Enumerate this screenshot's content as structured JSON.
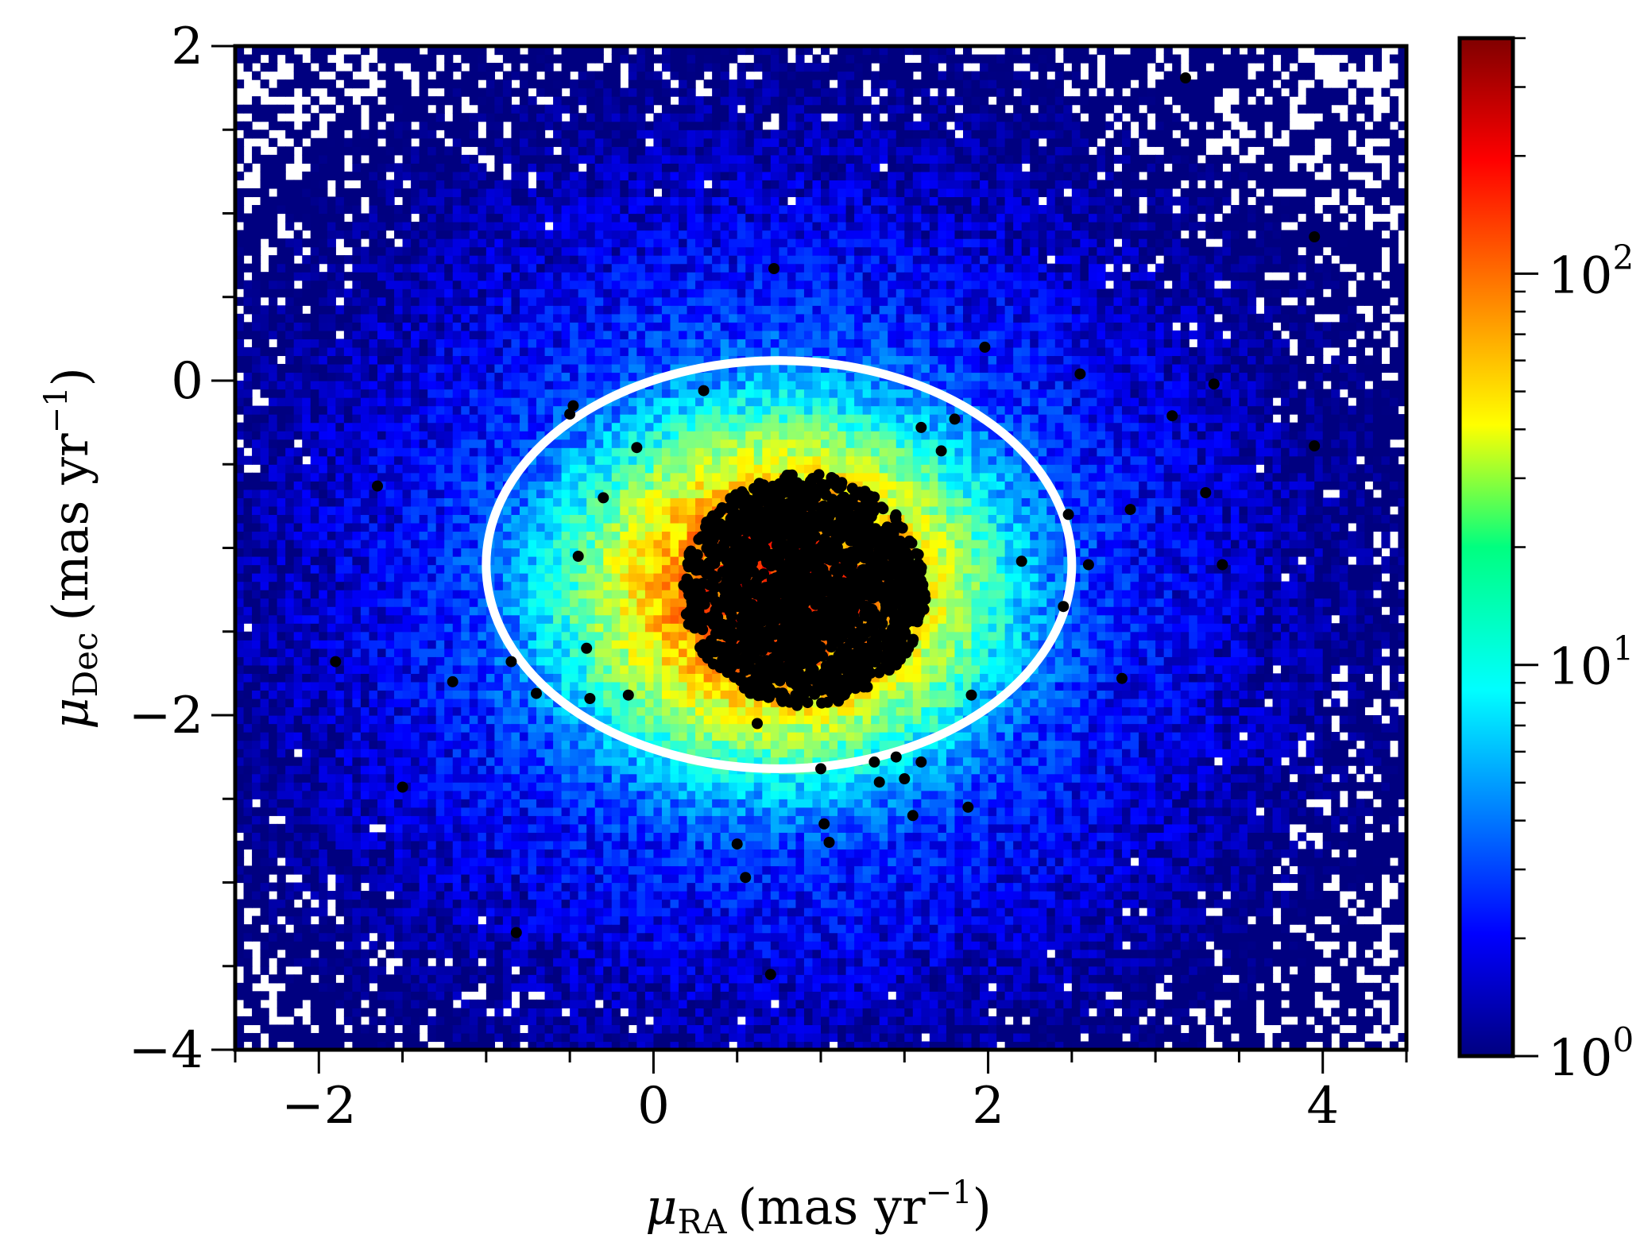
{
  "chart_data": {
    "type": "heatmap",
    "subtype": "2d-density-histogram-with-scatter-overlay",
    "title": "",
    "xlabel": {
      "symbol": "μ",
      "subscript": "RA",
      "unit": "(mas yr",
      "exp": "−1",
      "close": ")"
    },
    "ylabel": {
      "symbol": "μ",
      "subscript": "Dec",
      "unit": "(mas yr",
      "exp": "−1",
      "close": ")"
    },
    "xlim": [
      -2.5,
      4.5
    ],
    "ylim": [
      -4,
      2
    ],
    "xticks": [
      {
        "value": -2,
        "label": "−2"
      },
      {
        "value": 0,
        "label": "0"
      },
      {
        "value": 2,
        "label": "2"
      },
      {
        "value": 4,
        "label": "4"
      }
    ],
    "yticks": [
      {
        "value": -4,
        "label": "−4"
      },
      {
        "value": -2,
        "label": "−2"
      },
      {
        "value": 0,
        "label": "0"
      },
      {
        "value": 2,
        "label": "2"
      }
    ],
    "x_minor_step": 0.5,
    "y_minor_step": 0.5,
    "density": {
      "center": [
        0.75,
        -1.25
      ],
      "sigma": [
        0.55,
        0.45
      ],
      "peak_counts": 150,
      "background_counts": 1
    },
    "colorbar": {
      "scale": "log",
      "range": [
        1,
        400
      ],
      "colormap": "jet",
      "ticks": [
        {
          "value": 1,
          "base": "10",
          "exp": "0"
        },
        {
          "value": 10,
          "base": "10",
          "exp": "1"
        },
        {
          "value": 100,
          "base": "10",
          "exp": "2"
        }
      ]
    },
    "selection_ellipse": {
      "center": [
        0.75,
        -1.1
      ],
      "semi_axes": [
        1.75,
        1.22
      ],
      "color": "#ffffff"
    },
    "core_cluster": {
      "center": [
        0.9,
        -1.25
      ],
      "semi_axes": [
        0.65,
        0.62
      ],
      "color": "#000000"
    },
    "member_points": [
      [
        -1.65,
        -0.63
      ],
      [
        -1.9,
        -1.68
      ],
      [
        -1.5,
        -2.43
      ],
      [
        -1.2,
        -1.8
      ],
      [
        -0.82,
        -3.3
      ],
      [
        -0.85,
        -1.68
      ],
      [
        -0.7,
        -1.87
      ],
      [
        -0.5,
        -0.2
      ],
      [
        -0.48,
        -0.15
      ],
      [
        -0.45,
        -1.05
      ],
      [
        -0.4,
        -1.6
      ],
      [
        -0.38,
        -1.9
      ],
      [
        -0.3,
        -0.7
      ],
      [
        -0.15,
        -1.88
      ],
      [
        -0.1,
        -0.4
      ],
      [
        0.3,
        -0.06
      ],
      [
        0.5,
        -2.77
      ],
      [
        0.55,
        -2.97
      ],
      [
        0.62,
        -2.05
      ],
      [
        0.7,
        -3.55
      ],
      [
        0.72,
        0.67
      ],
      [
        1.0,
        -2.32
      ],
      [
        1.02,
        -2.65
      ],
      [
        1.05,
        -2.76
      ],
      [
        1.32,
        -2.28
      ],
      [
        1.35,
        -2.4
      ],
      [
        1.45,
        -2.25
      ],
      [
        1.5,
        -2.38
      ],
      [
        1.55,
        -2.6
      ],
      [
        1.6,
        -2.28
      ],
      [
        1.6,
        -0.28
      ],
      [
        1.72,
        -0.42
      ],
      [
        1.8,
        -0.23
      ],
      [
        1.88,
        -2.55
      ],
      [
        1.9,
        -1.88
      ],
      [
        1.98,
        0.2
      ],
      [
        2.2,
        -1.08
      ],
      [
        2.45,
        -1.35
      ],
      [
        2.48,
        -0.8
      ],
      [
        2.55,
        0.04
      ],
      [
        2.6,
        -1.1
      ],
      [
        2.8,
        -1.78
      ],
      [
        2.85,
        -0.77
      ],
      [
        3.1,
        -0.21
      ],
      [
        3.18,
        1.81
      ],
      [
        3.3,
        -0.67
      ],
      [
        3.35,
        -0.02
      ],
      [
        3.4,
        -1.1
      ],
      [
        3.95,
        0.86
      ],
      [
        3.95,
        -0.39
      ]
    ]
  }
}
